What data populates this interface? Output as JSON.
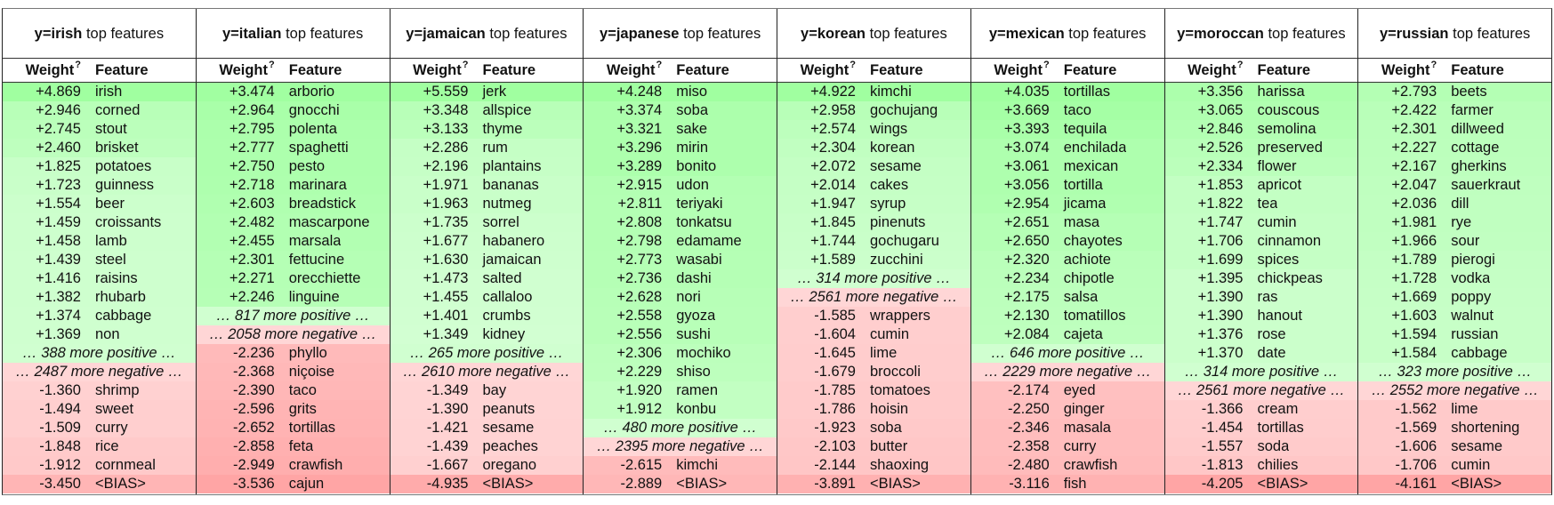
{
  "weight_label": "Weight",
  "weight_sup": "?",
  "feature_label": "Feature",
  "title_suffix": "top features",
  "columns": [
    {
      "label": "y=irish",
      "rows": [
        [
          "+4.869",
          "irish"
        ],
        [
          "+2.946",
          "corned"
        ],
        [
          "+2.745",
          "stout"
        ],
        [
          "+2.460",
          "brisket"
        ],
        [
          "+1.825",
          "potatoes"
        ],
        [
          "+1.723",
          "guinness"
        ],
        [
          "+1.554",
          "beer"
        ],
        [
          "+1.459",
          "croissants"
        ],
        [
          "+1.458",
          "lamb"
        ],
        [
          "+1.439",
          "steel"
        ],
        [
          "+1.416",
          "raisins"
        ],
        [
          "+1.382",
          "rhubarb"
        ],
        [
          "+1.374",
          "cabbage"
        ],
        [
          "+1.369",
          "non"
        ],
        [
          "… 388 more positive …"
        ],
        [
          "… 2487 more negative …"
        ],
        [
          "-1.360",
          "shrimp"
        ],
        [
          "-1.494",
          "sweet"
        ],
        [
          "-1.509",
          "curry"
        ],
        [
          "-1.848",
          "rice"
        ],
        [
          "-1.912",
          "cornmeal"
        ],
        [
          "-3.450",
          "<BIAS>"
        ]
      ]
    },
    {
      "label": "y=italian",
      "rows": [
        [
          "+3.474",
          "arborio"
        ],
        [
          "+2.964",
          "gnocchi"
        ],
        [
          "+2.795",
          "polenta"
        ],
        [
          "+2.777",
          "spaghetti"
        ],
        [
          "+2.750",
          "pesto"
        ],
        [
          "+2.718",
          "marinara"
        ],
        [
          "+2.603",
          "breadstick"
        ],
        [
          "+2.482",
          "mascarpone"
        ],
        [
          "+2.455",
          "marsala"
        ],
        [
          "+2.301",
          "fettucine"
        ],
        [
          "+2.271",
          "orecchiette"
        ],
        [
          "+2.246",
          "linguine"
        ],
        [
          "… 817 more positive …"
        ],
        [
          "… 2058 more negative …"
        ],
        [
          "-2.236",
          "phyllo"
        ],
        [
          "-2.368",
          "niçoise"
        ],
        [
          "-2.390",
          "taco"
        ],
        [
          "-2.596",
          "grits"
        ],
        [
          "-2.652",
          "tortillas"
        ],
        [
          "-2.858",
          "feta"
        ],
        [
          "-2.949",
          "crawfish"
        ],
        [
          "-3.536",
          "cajun"
        ]
      ]
    },
    {
      "label": "y=jamaican",
      "rows": [
        [
          "+5.559",
          "jerk"
        ],
        [
          "+3.348",
          "allspice"
        ],
        [
          "+3.133",
          "thyme"
        ],
        [
          "+2.286",
          "rum"
        ],
        [
          "+2.196",
          "plantains"
        ],
        [
          "+1.971",
          "bananas"
        ],
        [
          "+1.963",
          "nutmeg"
        ],
        [
          "+1.735",
          "sorrel"
        ],
        [
          "+1.677",
          "habanero"
        ],
        [
          "+1.630",
          "jamaican"
        ],
        [
          "+1.473",
          "salted"
        ],
        [
          "+1.455",
          "callaloo"
        ],
        [
          "+1.401",
          "crumbs"
        ],
        [
          "+1.349",
          "kidney"
        ],
        [
          "… 265 more positive …"
        ],
        [
          "… 2610 more negative …"
        ],
        [
          "-1.349",
          "bay"
        ],
        [
          "-1.390",
          "peanuts"
        ],
        [
          "-1.421",
          "sesame"
        ],
        [
          "-1.439",
          "peaches"
        ],
        [
          "-1.667",
          "oregano"
        ],
        [
          "-4.935",
          "<BIAS>"
        ]
      ]
    },
    {
      "label": "y=japanese",
      "rows": [
        [
          "+4.248",
          "miso"
        ],
        [
          "+3.374",
          "soba"
        ],
        [
          "+3.321",
          "sake"
        ],
        [
          "+3.296",
          "mirin"
        ],
        [
          "+3.289",
          "bonito"
        ],
        [
          "+2.915",
          "udon"
        ],
        [
          "+2.811",
          "teriyaki"
        ],
        [
          "+2.808",
          "tonkatsu"
        ],
        [
          "+2.798",
          "edamame"
        ],
        [
          "+2.773",
          "wasabi"
        ],
        [
          "+2.736",
          "dashi"
        ],
        [
          "+2.628",
          "nori"
        ],
        [
          "+2.558",
          "gyoza"
        ],
        [
          "+2.556",
          "sushi"
        ],
        [
          "+2.306",
          "mochiko"
        ],
        [
          "+2.229",
          "shiso"
        ],
        [
          "+1.920",
          "ramen"
        ],
        [
          "+1.912",
          "konbu"
        ],
        [
          "… 480 more positive …"
        ],
        [
          "… 2395 more negative …"
        ],
        [
          "-2.615",
          "kimchi"
        ],
        [
          "-2.889",
          "<BIAS>"
        ]
      ]
    },
    {
      "label": "y=korean",
      "rows": [
        [
          "+4.922",
          "kimchi"
        ],
        [
          "+2.958",
          "gochujang"
        ],
        [
          "+2.574",
          "wings"
        ],
        [
          "+2.304",
          "korean"
        ],
        [
          "+2.072",
          "sesame"
        ],
        [
          "+2.014",
          "cakes"
        ],
        [
          "+1.947",
          "syrup"
        ],
        [
          "+1.845",
          "pinenuts"
        ],
        [
          "+1.744",
          "gochugaru"
        ],
        [
          "+1.589",
          "zucchini"
        ],
        [
          "… 314 more positive …"
        ],
        [
          "… 2561 more negative …"
        ],
        [
          "-1.585",
          "wrappers"
        ],
        [
          "-1.604",
          "cumin"
        ],
        [
          "-1.645",
          "lime"
        ],
        [
          "-1.679",
          "broccoli"
        ],
        [
          "-1.785",
          "tomatoes"
        ],
        [
          "-1.786",
          "hoisin"
        ],
        [
          "-1.923",
          "soba"
        ],
        [
          "-2.103",
          "butter"
        ],
        [
          "-2.144",
          "shaoxing"
        ],
        [
          "-3.891",
          "<BIAS>"
        ]
      ]
    },
    {
      "label": "y=mexican",
      "rows": [
        [
          "+4.035",
          "tortillas"
        ],
        [
          "+3.669",
          "taco"
        ],
        [
          "+3.393",
          "tequila"
        ],
        [
          "+3.074",
          "enchilada"
        ],
        [
          "+3.061",
          "mexican"
        ],
        [
          "+3.056",
          "tortilla"
        ],
        [
          "+2.954",
          "jicama"
        ],
        [
          "+2.651",
          "masa"
        ],
        [
          "+2.650",
          "chayotes"
        ],
        [
          "+2.320",
          "achiote"
        ],
        [
          "+2.234",
          "chipotle"
        ],
        [
          "+2.175",
          "salsa"
        ],
        [
          "+2.130",
          "tomatillos"
        ],
        [
          "+2.084",
          "cajeta"
        ],
        [
          "… 646 more positive …"
        ],
        [
          "… 2229 more negative …"
        ],
        [
          "-2.174",
          "eyed"
        ],
        [
          "-2.250",
          "ginger"
        ],
        [
          "-2.346",
          "masala"
        ],
        [
          "-2.358",
          "curry"
        ],
        [
          "-2.480",
          "crawfish"
        ],
        [
          "-3.116",
          "fish"
        ]
      ]
    },
    {
      "label": "y=moroccan",
      "rows": [
        [
          "+3.356",
          "harissa"
        ],
        [
          "+3.065",
          "couscous"
        ],
        [
          "+2.846",
          "semolina"
        ],
        [
          "+2.526",
          "preserved"
        ],
        [
          "+2.334",
          "flower"
        ],
        [
          "+1.853",
          "apricot"
        ],
        [
          "+1.822",
          "tea"
        ],
        [
          "+1.747",
          "cumin"
        ],
        [
          "+1.706",
          "cinnamon"
        ],
        [
          "+1.699",
          "spices"
        ],
        [
          "+1.395",
          "chickpeas"
        ],
        [
          "+1.390",
          "ras"
        ],
        [
          "+1.390",
          "hanout"
        ],
        [
          "+1.376",
          "rose"
        ],
        [
          "+1.370",
          "date"
        ],
        [
          "… 314 more positive …"
        ],
        [
          "… 2561 more negative …"
        ],
        [
          "-1.366",
          "cream"
        ],
        [
          "-1.454",
          "tortillas"
        ],
        [
          "-1.557",
          "soda"
        ],
        [
          "-1.813",
          "chilies"
        ],
        [
          "-4.205",
          "<BIAS>"
        ]
      ]
    },
    {
      "label": "y=russian",
      "rows": [
        [
          "+2.793",
          "beets"
        ],
        [
          "+2.422",
          "farmer"
        ],
        [
          "+2.301",
          "dillweed"
        ],
        [
          "+2.227",
          "cottage"
        ],
        [
          "+2.167",
          "gherkins"
        ],
        [
          "+2.047",
          "sauerkraut"
        ],
        [
          "+2.036",
          "dill"
        ],
        [
          "+1.981",
          "rye"
        ],
        [
          "+1.966",
          "sour"
        ],
        [
          "+1.789",
          "pierogi"
        ],
        [
          "+1.728",
          "vodka"
        ],
        [
          "+1.669",
          "poppy"
        ],
        [
          "+1.603",
          "walnut"
        ],
        [
          "+1.594",
          "russian"
        ],
        [
          "+1.584",
          "cabbage"
        ],
        [
          "… 323 more positive …"
        ],
        [
          "… 2552 more negative …"
        ],
        [
          "-1.562",
          "lime"
        ],
        [
          "-1.569",
          "shortening"
        ],
        [
          "-1.606",
          "sesame"
        ],
        [
          "-1.706",
          "cumin"
        ],
        [
          "-4.161",
          "<BIAS>"
        ]
      ]
    }
  ]
}
